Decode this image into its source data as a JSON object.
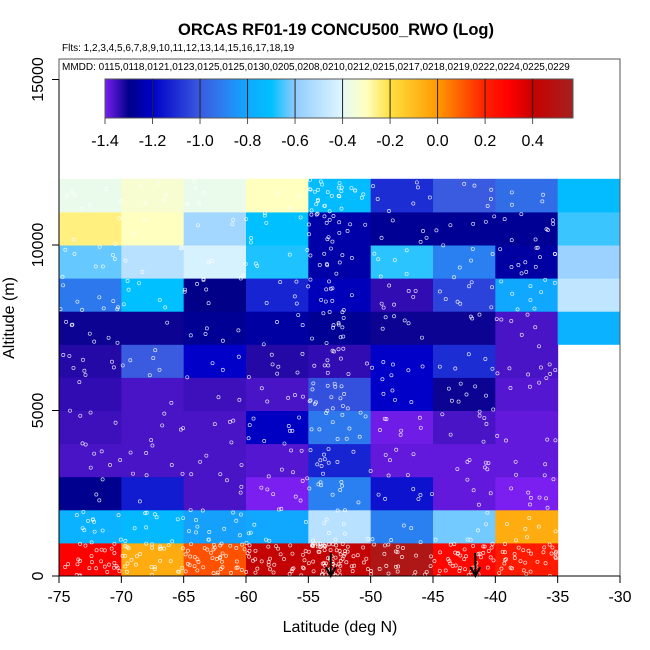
{
  "chart_data": {
    "type": "heatmap",
    "title": "ORCAS RF01-19 CONCU500_RWO (Log)",
    "flights_label": "Flts: 1,2,3,4,5,6,7,8,9,10,11,12,13,14,15,16,17,18,19",
    "dates_label": "MMDD: 0115,0118,0121,0123,0125,0125,0130,0205,0208,0210,0212,0215,0217,0218,0219,0222,0224,0225,0229",
    "xlabel": "Latitude (deg N)",
    "ylabel": "Altitude (m)",
    "xlim": [
      -75,
      -30
    ],
    "ylim": [
      0,
      15000
    ],
    "x_ticks": [
      "-75",
      "-70",
      "-65",
      "-60",
      "-55",
      "-50",
      "-45",
      "-40",
      "-35",
      "-30"
    ],
    "y_ticks": [
      "0",
      "5000",
      "10000",
      "15000"
    ],
    "x_bin_edges": [
      -75,
      -70,
      -65,
      -60,
      -55,
      -50,
      -45,
      -40,
      -35,
      -30
    ],
    "y_bin_edges": [
      0,
      1000,
      2000,
      3000,
      4000,
      5000,
      6000,
      7000,
      8000,
      9000,
      10000,
      11000,
      12000
    ],
    "values_by_altitude_bin": [
      [
        0.3,
        -0.05,
        0.12,
        0.42,
        0.42,
        0.52,
        0.28,
        0.22,
        null
      ],
      [
        -0.76,
        -0.73,
        -0.82,
        -0.8,
        -0.5,
        -0.9,
        -0.62,
        -0.05,
        null
      ],
      [
        -1.29,
        -1.14,
        -1.36,
        -1.4,
        -0.9,
        -1.16,
        -1.38,
        -1.4,
        null
      ],
      [
        -1.36,
        -1.36,
        -1.36,
        -1.37,
        -1.12,
        -1.38,
        -1.38,
        -1.38,
        null
      ],
      [
        -1.35,
        -1.36,
        -1.36,
        -1.21,
        -0.92,
        -1.39,
        -1.36,
        -1.38,
        null
      ],
      [
        -1.34,
        -1.36,
        -1.35,
        -1.36,
        -1.02,
        -1.2,
        -1.31,
        -1.37,
        null
      ],
      [
        -1.33,
        -1.0,
        -1.2,
        -1.33,
        -1.34,
        -1.2,
        -1.1,
        -1.36,
        null
      ],
      [
        -1.31,
        -1.31,
        -1.28,
        -1.26,
        -1.28,
        -1.31,
        -1.31,
        -1.36,
        -0.76
      ],
      [
        -0.92,
        -0.7,
        -1.3,
        -1.12,
        -1.22,
        -1.34,
        -1.05,
        -0.8,
        -0.48
      ],
      [
        -0.63,
        -0.5,
        -0.42,
        -0.68,
        -1.25,
        -0.67,
        -0.9,
        -1.26,
        -0.57
      ],
      [
        -0.25,
        -0.3,
        -0.55,
        -0.7,
        -1.25,
        -1.28,
        -1.28,
        -1.28,
        -0.66
      ],
      [
        -0.38,
        -0.33,
        -0.38,
        -0.3,
        -0.72,
        -1.1,
        -1.0,
        -0.95,
        -0.72
      ]
    ],
    "colorbar": {
      "range": [
        -1.4,
        0.57
      ],
      "tick_labels": [
        "-1.4",
        "-1.2",
        "-1.0",
        "-0.8",
        "-0.6",
        "-0.4",
        "-0.2",
        "0.0",
        "0.2",
        "0.4"
      ],
      "tick_values": [
        -1.4,
        -1.2,
        -1.0,
        -0.8,
        -0.6,
        -0.4,
        -0.2,
        0.0,
        0.2,
        0.4
      ],
      "stops": [
        [
          -1.4,
          "#7a1ff0"
        ],
        [
          -1.3,
          "#000088"
        ],
        [
          -1.2,
          "#0000c8"
        ],
        [
          -1.0,
          "#3a5ae0"
        ],
        [
          -0.9,
          "#2a80f0"
        ],
        [
          -0.8,
          "#10a8ff"
        ],
        [
          -0.7,
          "#00c0ff"
        ],
        [
          -0.6,
          "#90ccff"
        ],
        [
          -0.4,
          "#dff6ff"
        ],
        [
          -0.39,
          "#e8faf0"
        ],
        [
          -0.3,
          "#ffffc0"
        ],
        [
          -0.2,
          "#ffe040"
        ],
        [
          0.0,
          "#ff9a00"
        ],
        [
          0.2,
          "#ff2000"
        ],
        [
          0.3,
          "#ff0000"
        ],
        [
          0.4,
          "#c80000"
        ],
        [
          0.57,
          "#a52020"
        ]
      ]
    },
    "arrow_markers_lat": [
      -53.2,
      -41.6
    ],
    "grid": false,
    "legend": "colorbar-top"
  }
}
